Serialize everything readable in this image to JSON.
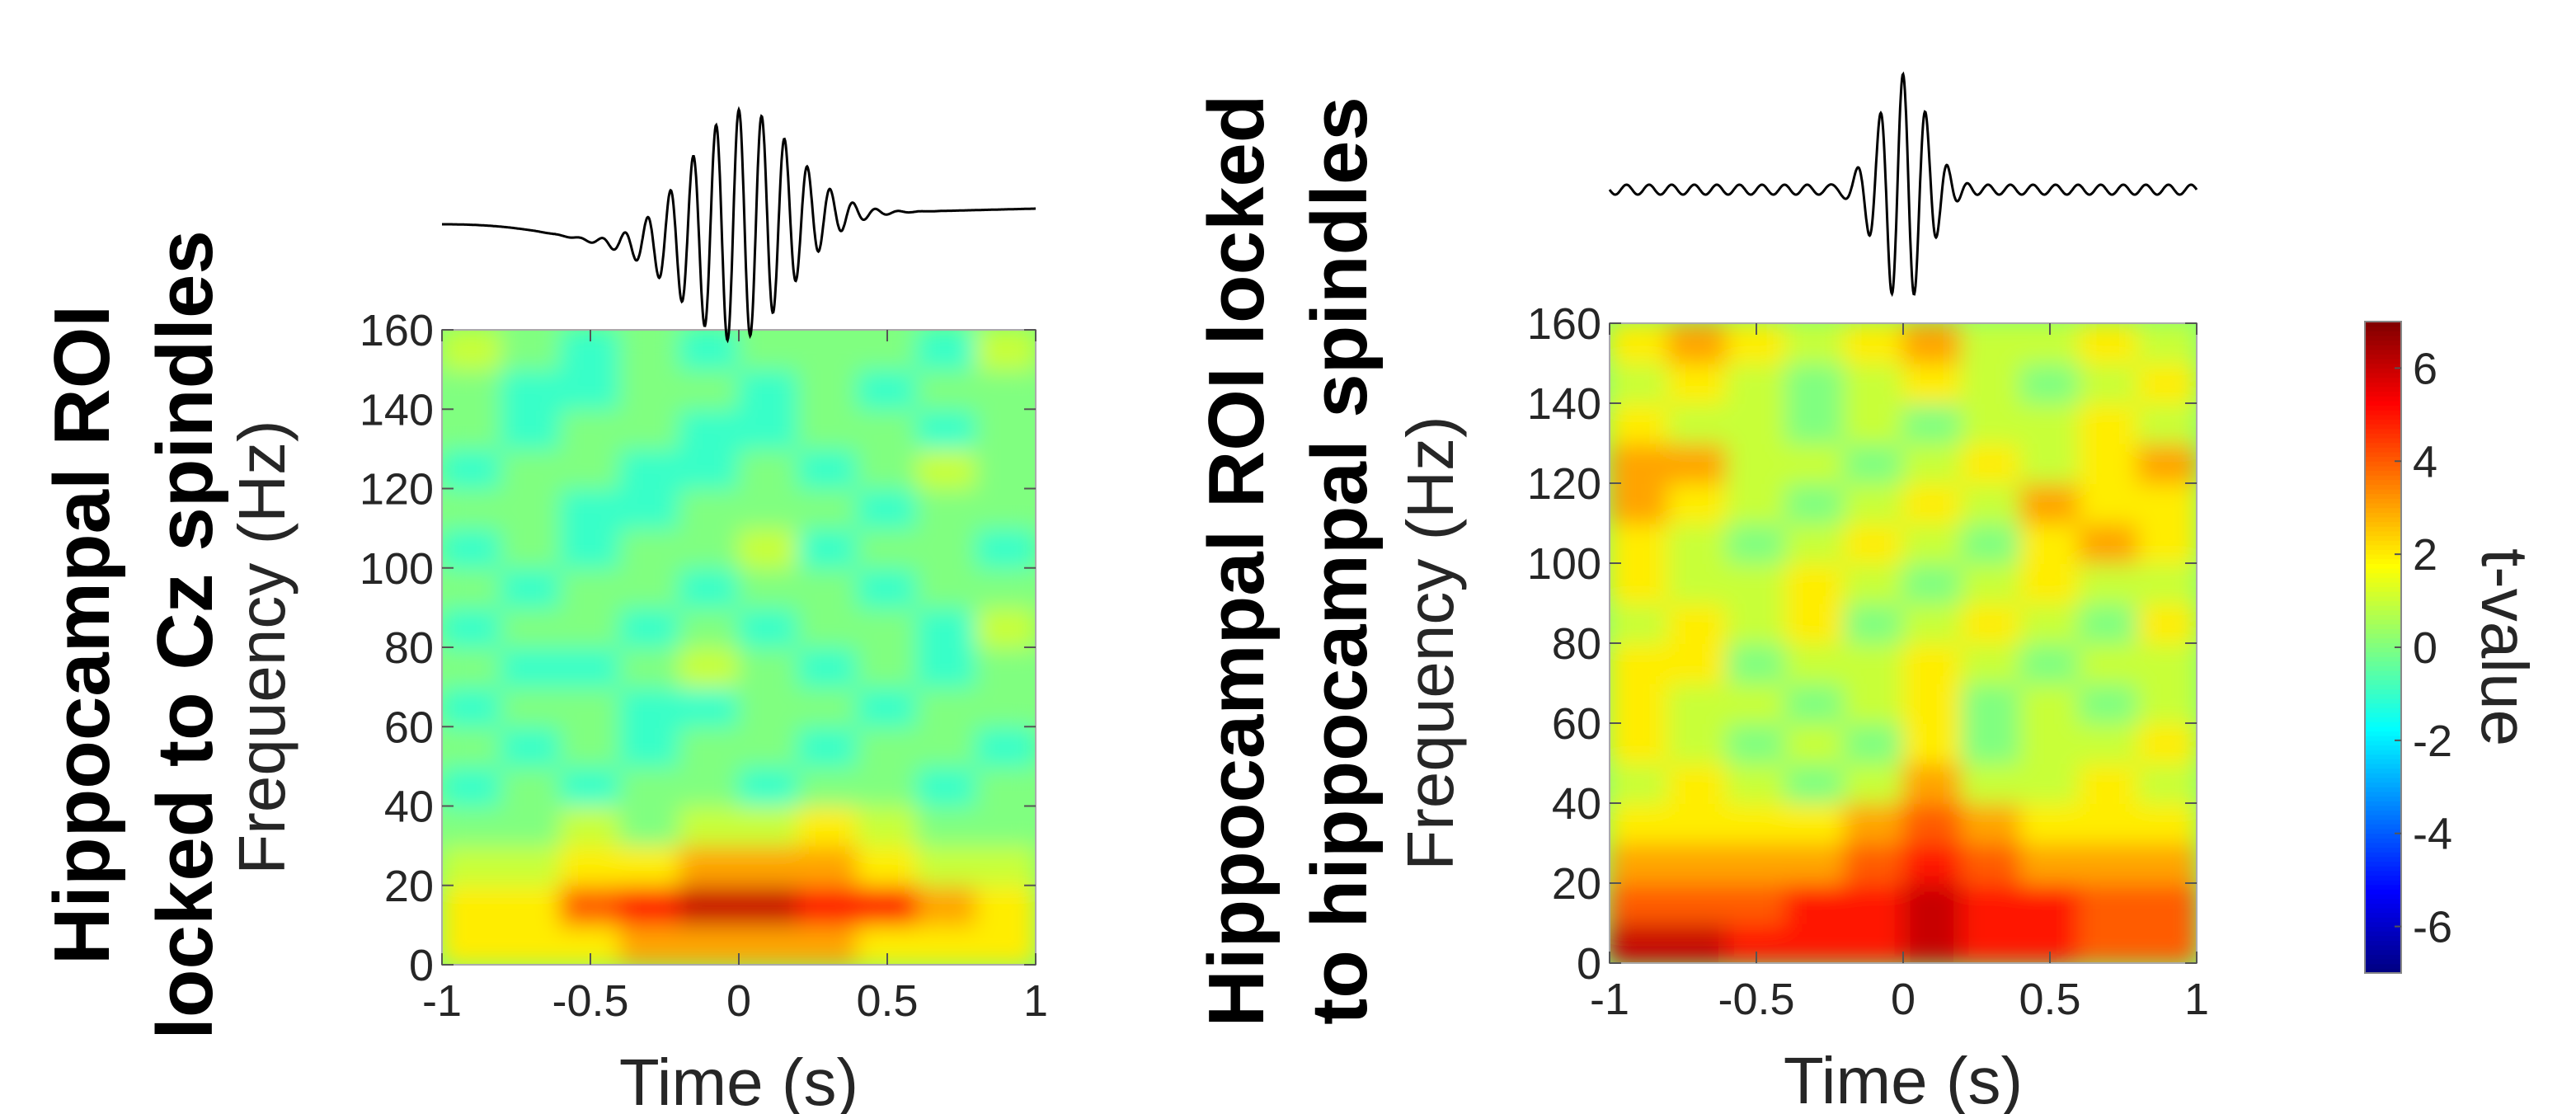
{
  "chart_data": [
    {
      "type": "heatmap",
      "title_lines": [
        "Hippocampal ROI",
        "locked to Cz spindles"
      ],
      "xlabel": "Time (s)",
      "ylabel": "Frequency (Hz)",
      "xlim": [
        -1,
        1
      ],
      "xticks": [
        -1,
        -0.5,
        0,
        0.5,
        1
      ],
      "ylim": [
        0,
        160
      ],
      "yticks": [
        0,
        20,
        40,
        60,
        80,
        100,
        120,
        140,
        160
      ],
      "x": [
        -0.9,
        -0.7,
        -0.5,
        -0.3,
        -0.1,
        0.1,
        0.3,
        0.5,
        0.7,
        0.9
      ],
      "y": [
        5,
        15,
        25,
        35,
        45,
        55,
        65,
        75,
        85,
        95,
        105,
        115,
        125,
        135,
        145,
        155
      ],
      "z": [
        [
          2,
          2,
          2,
          3,
          3,
          3,
          3,
          2,
          2,
          2
        ],
        [
          2,
          2,
          4,
          5,
          6,
          6,
          5,
          5,
          3,
          2
        ],
        [
          1,
          1,
          2,
          2,
          3,
          3,
          3,
          2,
          1,
          1
        ],
        [
          0,
          0,
          1,
          0,
          1,
          1,
          2,
          1,
          0,
          0
        ],
        [
          -1,
          0,
          -1,
          0,
          0,
          -1,
          0,
          0,
          -1,
          0
        ],
        [
          0,
          -1,
          0,
          -1,
          0,
          0,
          -1,
          0,
          0,
          -1
        ],
        [
          -1,
          0,
          0,
          -1,
          -1,
          0,
          0,
          -1,
          0,
          0
        ],
        [
          0,
          -1,
          -1,
          0,
          1,
          0,
          -1,
          0,
          -1,
          0
        ],
        [
          -1,
          0,
          0,
          -1,
          0,
          -1,
          0,
          0,
          -1,
          1
        ],
        [
          0,
          -1,
          0,
          0,
          -1,
          0,
          0,
          -1,
          0,
          0
        ],
        [
          -1,
          0,
          -1,
          0,
          0,
          1,
          -1,
          0,
          0,
          -1
        ],
        [
          0,
          0,
          -1,
          -1,
          0,
          0,
          0,
          -1,
          0,
          0
        ],
        [
          -1,
          0,
          0,
          -1,
          -1,
          0,
          -1,
          0,
          1,
          0
        ],
        [
          0,
          -1,
          0,
          0,
          -1,
          -1,
          0,
          0,
          -1,
          0
        ],
        [
          0,
          -1,
          -1,
          0,
          0,
          -1,
          0,
          -1,
          0,
          0
        ],
        [
          1,
          0,
          -1,
          0,
          -1,
          0,
          0,
          0,
          -1,
          1
        ]
      ]
    },
    {
      "type": "heatmap",
      "title_lines": [
        "Hippocampal ROI locked",
        "to hippocampal spindles"
      ],
      "xlabel": "Time (s)",
      "ylabel": "Frequency (Hz)",
      "xlim": [
        -1,
        1
      ],
      "xticks": [
        -1,
        -0.5,
        0,
        0.5,
        1
      ],
      "ylim": [
        0,
        160
      ],
      "yticks": [
        0,
        20,
        40,
        60,
        80,
        100,
        120,
        140,
        160
      ],
      "x": [
        -0.9,
        -0.7,
        -0.5,
        -0.3,
        -0.1,
        0.1,
        0.3,
        0.5,
        0.7,
        0.9
      ],
      "y": [
        5,
        15,
        25,
        35,
        45,
        55,
        65,
        75,
        85,
        95,
        105,
        115,
        125,
        135,
        145,
        155
      ],
      "z": [
        [
          6,
          6,
          5,
          5,
          5,
          6,
          5,
          5,
          4,
          4
        ],
        [
          4,
          4,
          4,
          5,
          5,
          6,
          5,
          5,
          4,
          4
        ],
        [
          3,
          3,
          3,
          3,
          4,
          5,
          4,
          3,
          3,
          3
        ],
        [
          2,
          2,
          2,
          2,
          3,
          4,
          3,
          2,
          2,
          2
        ],
        [
          1,
          2,
          1,
          0,
          1,
          3,
          1,
          1,
          2,
          1
        ],
        [
          2,
          1,
          0,
          1,
          0,
          2,
          0,
          1,
          1,
          2
        ],
        [
          2,
          1,
          1,
          0,
          1,
          2,
          0,
          1,
          0,
          1
        ],
        [
          2,
          2,
          0,
          1,
          1,
          2,
          1,
          0,
          1,
          1
        ],
        [
          1,
          2,
          1,
          2,
          0,
          1,
          2,
          1,
          0,
          2
        ],
        [
          2,
          1,
          1,
          2,
          1,
          0,
          1,
          2,
          1,
          1
        ],
        [
          2,
          1,
          0,
          1,
          2,
          1,
          0,
          2,
          3,
          2
        ],
        [
          3,
          2,
          1,
          0,
          1,
          2,
          1,
          3,
          2,
          2
        ],
        [
          3,
          3,
          1,
          1,
          0,
          1,
          2,
          1,
          2,
          3
        ],
        [
          2,
          1,
          1,
          0,
          1,
          0,
          1,
          1,
          2,
          1
        ],
        [
          1,
          2,
          1,
          0,
          1,
          2,
          1,
          0,
          1,
          2
        ],
        [
          2,
          3,
          2,
          1,
          2,
          3,
          1,
          1,
          2,
          1
        ]
      ]
    }
  ],
  "colorbar": {
    "label": "t-value",
    "clim": [
      -7,
      7
    ],
    "ticks": [
      -6,
      -4,
      -2,
      0,
      2,
      4,
      6
    ]
  }
}
